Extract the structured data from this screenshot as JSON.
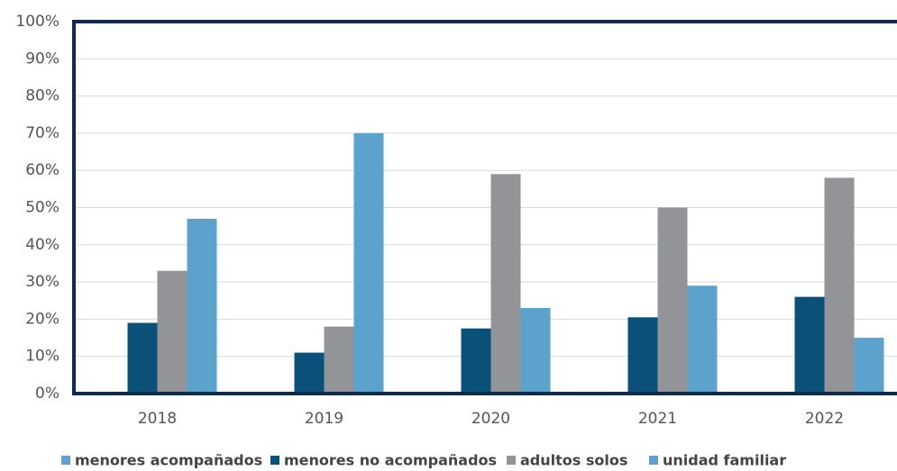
{
  "chart_data": {
    "type": "bar",
    "categories": [
      "2018",
      "2019",
      "2020",
      "2021",
      "2022"
    ],
    "series": [
      {
        "name": "menores acompañados",
        "color": "#5ba3cc",
        "values": [
          0,
          0,
          0,
          0,
          0
        ]
      },
      {
        "name": "menores no acompañados",
        "color": "#0b5079",
        "values": [
          19,
          11,
          17.5,
          20.5,
          26
        ]
      },
      {
        "name": "adultos solos",
        "color": "#929497",
        "values": [
          33,
          18,
          59,
          50,
          58
        ]
      },
      {
        "name": "unidad familiar",
        "color": "#5ba3cc",
        "values": [
          47,
          70,
          23,
          29,
          15
        ]
      }
    ],
    "ylim": [
      0,
      100
    ],
    "yticks": [
      {
        "value": 0,
        "label": "0%"
      },
      {
        "value": 10,
        "label": "10%"
      },
      {
        "value": 20,
        "label": "20%"
      },
      {
        "value": 30,
        "label": "30%"
      },
      {
        "value": 40,
        "label": "40%"
      },
      {
        "value": 50,
        "label": "50%"
      },
      {
        "value": 60,
        "label": "60%"
      },
      {
        "value": 70,
        "label": "70%"
      },
      {
        "value": 80,
        "label": "80%"
      },
      {
        "value": 90,
        "label": "90%"
      },
      {
        "value": 100,
        "label": "100%"
      }
    ],
    "grid": true,
    "legend": "bottom"
  }
}
